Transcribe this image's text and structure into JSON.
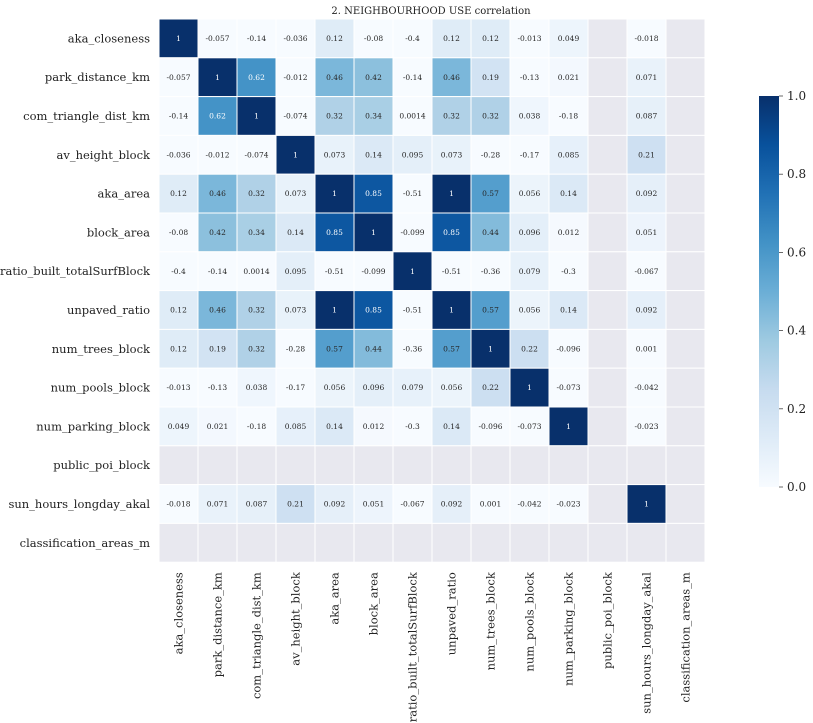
{
  "chart_data": {
    "type": "heatmap",
    "title": "2. NEIGHBOURHOOD USE correlation",
    "labels": [
      "aka_closeness",
      "park_distance_km",
      "com_triangle_dist_km",
      "av_height_block",
      "aka_area",
      "block_area",
      "ratio_built_totalSurfBlock",
      "unpaved_ratio",
      "num_trees_block",
      "num_pools_block",
      "num_parking_block",
      "public_poi_block",
      "sun_hours_longday_akal",
      "classification_areas_m"
    ],
    "matrix": [
      [
        "1",
        "-0.057",
        "-0.14",
        "-0.036",
        "0.12",
        "-0.08",
        "-0.4",
        "0.12",
        "0.12",
        "-0.013",
        "0.049",
        null,
        "-0.018",
        null
      ],
      [
        "-0.057",
        "1",
        "0.62",
        "-0.012",
        "0.46",
        "0.42",
        "-0.14",
        "0.46",
        "0.19",
        "-0.13",
        "0.021",
        null,
        "0.071",
        null
      ],
      [
        "-0.14",
        "0.62",
        "1",
        "-0.074",
        "0.32",
        "0.34",
        "0.0014",
        "0.32",
        "0.32",
        "0.038",
        "-0.18",
        null,
        "0.087",
        null
      ],
      [
        "-0.036",
        "-0.012",
        "-0.074",
        "1",
        "0.073",
        "0.14",
        "0.095",
        "0.073",
        "-0.28",
        "-0.17",
        "0.085",
        null,
        "0.21",
        null
      ],
      [
        "0.12",
        "0.46",
        "0.32",
        "0.073",
        "1",
        "0.85",
        "-0.51",
        "1",
        "0.57",
        "0.056",
        "0.14",
        null,
        "0.092",
        null
      ],
      [
        "-0.08",
        "0.42",
        "0.34",
        "0.14",
        "0.85",
        "1",
        "-0.099",
        "0.85",
        "0.44",
        "0.096",
        "0.012",
        null,
        "0.051",
        null
      ],
      [
        "-0.4",
        "-0.14",
        "0.0014",
        "0.095",
        "-0.51",
        "-0.099",
        "1",
        "-0.51",
        "-0.36",
        "0.079",
        "-0.3",
        null,
        "-0.067",
        null
      ],
      [
        "0.12",
        "0.46",
        "0.32",
        "0.073",
        "1",
        "0.85",
        "-0.51",
        "1",
        "0.57",
        "0.056",
        "0.14",
        null,
        "0.092",
        null
      ],
      [
        "0.12",
        "0.19",
        "0.32",
        "-0.28",
        "0.57",
        "0.44",
        "-0.36",
        "0.57",
        "1",
        "0.22",
        "-0.096",
        null,
        "0.001",
        null
      ],
      [
        "-0.013",
        "-0.13",
        "0.038",
        "-0.17",
        "0.056",
        "0.096",
        "0.079",
        "0.056",
        "0.22",
        "1",
        "-0.073",
        null,
        "-0.042",
        null
      ],
      [
        "0.049",
        "0.021",
        "-0.18",
        "0.085",
        "0.14",
        "0.012",
        "-0.3",
        "0.14",
        "-0.096",
        "-0.073",
        "1",
        null,
        "-0.023",
        null
      ],
      [
        null,
        null,
        null,
        null,
        null,
        null,
        null,
        null,
        null,
        null,
        null,
        null,
        null,
        null
      ],
      [
        "-0.018",
        "0.071",
        "0.087",
        "0.21",
        "0.092",
        "0.051",
        "-0.067",
        "0.092",
        "0.001",
        "-0.042",
        "-0.023",
        null,
        "1",
        null
      ],
      [
        null,
        null,
        null,
        null,
        null,
        null,
        null,
        null,
        null,
        null,
        null,
        null,
        null,
        null
      ]
    ],
    "colormap": "Blues",
    "vmin": 0.0,
    "vmax": 1.0,
    "colorbar_ticks": [
      "0.0",
      "0.2",
      "0.4",
      "0.6",
      "0.8",
      "1.0"
    ],
    "nan_color": "#e8e8ef",
    "grid_line_color": "#ffffff"
  }
}
